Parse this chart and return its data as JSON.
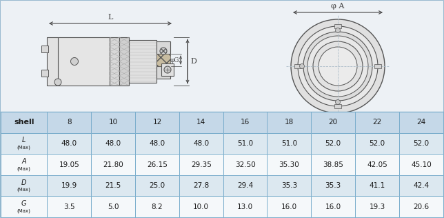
{
  "table_header": [
    "shell",
    "8",
    "10",
    "12",
    "14",
    "16",
    "18",
    "20",
    "22",
    "24"
  ],
  "row_labels_top": [
    "L",
    "A",
    "D",
    "G"
  ],
  "row_labels_bot": [
    "(Max)",
    "(Max)",
    "(Max)",
    "(Max)"
  ],
  "table_data": [
    [
      "48.0",
      "48.0",
      "48.0",
      "48.0",
      "51.0",
      "51.0",
      "52.0",
      "52.0",
      "52.0"
    ],
    [
      "19.05",
      "21.80",
      "26.15",
      "29.35",
      "32.50",
      "35.30",
      "38.85",
      "42.05",
      "45.10"
    ],
    [
      "19.9",
      "21.5",
      "25.0",
      "27.8",
      "29.4",
      "35.3",
      "35.3",
      "41.1",
      "42.4"
    ],
    [
      "3.5",
      "5.0",
      "8.2",
      "10.0",
      "13.0",
      "16.0",
      "16.0",
      "19.3",
      "20.6"
    ]
  ],
  "outer_bg": "#e8eef2",
  "diagram_bg": "#edf1f5",
  "header_bg": "#c5d8e8",
  "row_bg_odd": "#dce8f0",
  "row_bg_even": "#f5f8fa",
  "border_color": "#7aadcc",
  "text_color": "#1a1a1a",
  "line_color": "#555555",
  "dim_line_color": "#444444"
}
